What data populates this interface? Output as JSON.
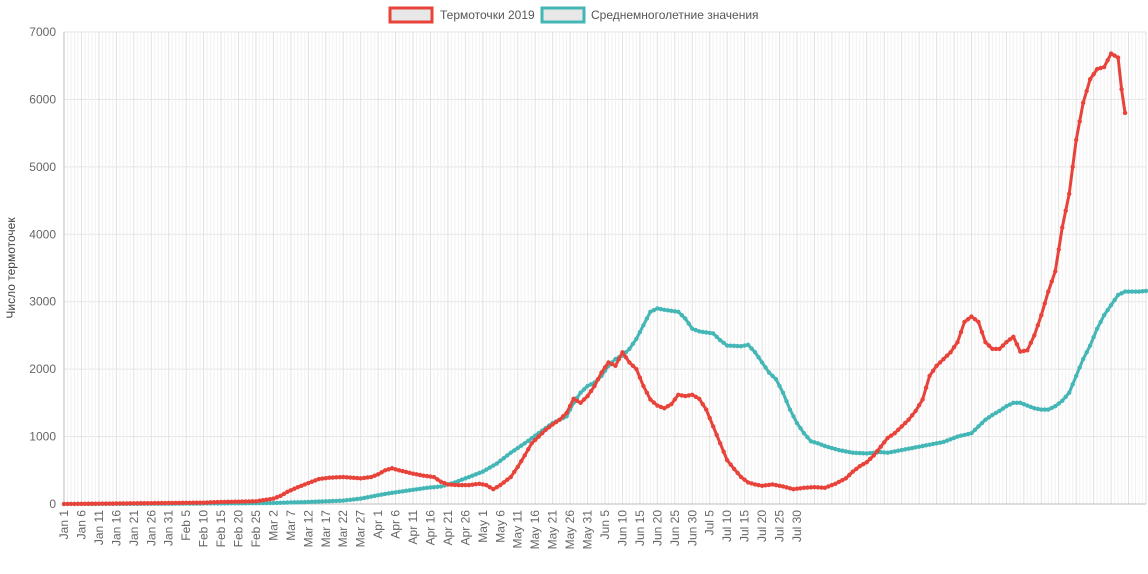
{
  "chart_data": {
    "type": "line",
    "title": "",
    "xlabel": "",
    "ylabel": "Число термоточек",
    "ylim": [
      0,
      7000
    ],
    "yticks": [
      "0",
      "1000",
      "2000",
      "3000",
      "4000",
      "5000",
      "6000",
      "7000"
    ],
    "x_start": "Jan 1",
    "x_tick_labels": [
      "Jan 1",
      "Jan 6",
      "Jan 11",
      "Jan 16",
      "Jan 21",
      "Jan 26",
      "Jan 31",
      "Feb 5",
      "Feb 10",
      "Feb 15",
      "Feb 20",
      "Feb 25",
      "Mar 2",
      "Mar 7",
      "Mar 12",
      "Mar 17",
      "Mar 22",
      "Mar 27",
      "Apr 1",
      "Apr 6",
      "Apr 11",
      "Apr 16",
      "Apr 21",
      "Apr 26",
      "May 1",
      "May 6",
      "May 11",
      "May 16",
      "May 21",
      "May 26",
      "May 31",
      "Jun 5",
      "Jun 10",
      "Jun 15",
      "Jun 20",
      "Jun 25",
      "Jun 30",
      "Jul 5",
      "Jul 10",
      "Jul 15",
      "Jul 20",
      "Jul 25",
      "Jul 30"
    ],
    "grid": true,
    "legend_position": "top",
    "series": [
      {
        "name": "Термоточки 2019",
        "color": "#e8433a",
        "points": [
          [
            0,
            0
          ],
          [
            10,
            5
          ],
          [
            20,
            10
          ],
          [
            30,
            15
          ],
          [
            40,
            20
          ],
          [
            45,
            30
          ],
          [
            50,
            35
          ],
          [
            55,
            40
          ],
          [
            60,
            80
          ],
          [
            62,
            120
          ],
          [
            64,
            180
          ],
          [
            67,
            250
          ],
          [
            70,
            310
          ],
          [
            73,
            370
          ],
          [
            76,
            390
          ],
          [
            80,
            400
          ],
          [
            85,
            380
          ],
          [
            88,
            400
          ],
          [
            90,
            440
          ],
          [
            92,
            500
          ],
          [
            94,
            530
          ],
          [
            96,
            500
          ],
          [
            100,
            450
          ],
          [
            103,
            420
          ],
          [
            106,
            400
          ],
          [
            108,
            330
          ],
          [
            110,
            290
          ],
          [
            113,
            280
          ],
          [
            116,
            280
          ],
          [
            119,
            300
          ],
          [
            121,
            280
          ],
          [
            123,
            220
          ],
          [
            125,
            280
          ],
          [
            128,
            400
          ],
          [
            130,
            550
          ],
          [
            132,
            720
          ],
          [
            134,
            900
          ],
          [
            136,
            1000
          ],
          [
            138,
            1100
          ],
          [
            140,
            1180
          ],
          [
            142,
            1250
          ],
          [
            144,
            1350
          ],
          [
            146,
            1560
          ],
          [
            148,
            1500
          ],
          [
            150,
            1600
          ],
          [
            152,
            1750
          ],
          [
            154,
            1950
          ],
          [
            156,
            2100
          ],
          [
            158,
            2050
          ],
          [
            160,
            2250
          ],
          [
            162,
            2100
          ],
          [
            164,
            2000
          ],
          [
            166,
            1750
          ],
          [
            168,
            1550
          ],
          [
            170,
            1460
          ],
          [
            172,
            1420
          ],
          [
            174,
            1480
          ],
          [
            176,
            1620
          ],
          [
            178,
            1600
          ],
          [
            180,
            1620
          ],
          [
            182,
            1560
          ],
          [
            184,
            1400
          ],
          [
            186,
            1150
          ],
          [
            188,
            900
          ],
          [
            190,
            650
          ],
          [
            192,
            520
          ],
          [
            194,
            400
          ],
          [
            196,
            320
          ],
          [
            198,
            290
          ],
          [
            200,
            270
          ],
          [
            203,
            290
          ],
          [
            206,
            260
          ],
          [
            209,
            220
          ],
          [
            212,
            240
          ],
          [
            215,
            250
          ],
          [
            218,
            240
          ],
          [
            221,
            300
          ],
          [
            224,
            380
          ],
          [
            226,
            480
          ],
          [
            228,
            560
          ],
          [
            230,
            620
          ],
          [
            232,
            720
          ],
          [
            234,
            850
          ],
          [
            236,
            980
          ],
          [
            238,
            1050
          ],
          [
            240,
            1150
          ],
          [
            242,
            1250
          ],
          [
            244,
            1380
          ],
          [
            246,
            1550
          ],
          [
            248,
            1900
          ],
          [
            250,
            2050
          ],
          [
            252,
            2150
          ],
          [
            254,
            2250
          ],
          [
            256,
            2400
          ],
          [
            258,
            2700
          ],
          [
            260,
            2780
          ],
          [
            262,
            2700
          ],
          [
            264,
            2400
          ],
          [
            266,
            2300
          ],
          [
            268,
            2300
          ],
          [
            270,
            2400
          ],
          [
            272,
            2480
          ],
          [
            274,
            2260
          ],
          [
            276,
            2280
          ],
          [
            278,
            2500
          ],
          [
            280,
            2800
          ],
          [
            282,
            3150
          ],
          [
            284,
            3450
          ],
          [
            286,
            4100
          ],
          [
            288,
            4600
          ],
          [
            290,
            5400
          ],
          [
            292,
            5950
          ],
          [
            294,
            6300
          ],
          [
            296,
            6450
          ],
          [
            298,
            6480
          ],
          [
            300,
            6680
          ],
          [
            302,
            6620
          ],
          [
            303,
            6150
          ],
          [
            304,
            5800
          ]
        ]
      },
      {
        "name": "Среднемноголетние значения",
        "color": "#44b6b6",
        "points": [
          [
            0,
            0
          ],
          [
            30,
            5
          ],
          [
            50,
            10
          ],
          [
            60,
            15
          ],
          [
            70,
            30
          ],
          [
            80,
            50
          ],
          [
            85,
            80
          ],
          [
            88,
            110
          ],
          [
            92,
            150
          ],
          [
            96,
            180
          ],
          [
            100,
            210
          ],
          [
            104,
            240
          ],
          [
            108,
            260
          ],
          [
            112,
            320
          ],
          [
            116,
            400
          ],
          [
            120,
            480
          ],
          [
            124,
            600
          ],
          [
            128,
            760
          ],
          [
            132,
            900
          ],
          [
            136,
            1050
          ],
          [
            140,
            1200
          ],
          [
            144,
            1300
          ],
          [
            146,
            1500
          ],
          [
            148,
            1650
          ],
          [
            150,
            1750
          ],
          [
            152,
            1800
          ],
          [
            154,
            1900
          ],
          [
            156,
            2050
          ],
          [
            158,
            2150
          ],
          [
            160,
            2200
          ],
          [
            162,
            2300
          ],
          [
            164,
            2450
          ],
          [
            166,
            2650
          ],
          [
            168,
            2850
          ],
          [
            170,
            2900
          ],
          [
            172,
            2880
          ],
          [
            176,
            2850
          ],
          [
            178,
            2750
          ],
          [
            180,
            2600
          ],
          [
            182,
            2560
          ],
          [
            186,
            2530
          ],
          [
            188,
            2430
          ],
          [
            190,
            2350
          ],
          [
            194,
            2340
          ],
          [
            196,
            2360
          ],
          [
            198,
            2250
          ],
          [
            200,
            2100
          ],
          [
            202,
            1950
          ],
          [
            204,
            1850
          ],
          [
            206,
            1650
          ],
          [
            208,
            1400
          ],
          [
            210,
            1200
          ],
          [
            212,
            1050
          ],
          [
            214,
            930
          ],
          [
            216,
            900
          ],
          [
            218,
            860
          ],
          [
            222,
            800
          ],
          [
            226,
            760
          ],
          [
            230,
            750
          ],
          [
            234,
            770
          ],
          [
            236,
            760
          ],
          [
            240,
            800
          ],
          [
            244,
            840
          ],
          [
            248,
            880
          ],
          [
            252,
            920
          ],
          [
            256,
            1000
          ],
          [
            260,
            1050
          ],
          [
            262,
            1150
          ],
          [
            264,
            1250
          ],
          [
            266,
            1320
          ],
          [
            268,
            1380
          ],
          [
            270,
            1450
          ],
          [
            272,
            1500
          ],
          [
            274,
            1500
          ],
          [
            276,
            1460
          ],
          [
            278,
            1420
          ],
          [
            280,
            1400
          ],
          [
            282,
            1400
          ],
          [
            284,
            1450
          ],
          [
            286,
            1530
          ],
          [
            288,
            1650
          ],
          [
            290,
            1900
          ],
          [
            292,
            2150
          ],
          [
            294,
            2350
          ],
          [
            296,
            2600
          ],
          [
            298,
            2800
          ],
          [
            300,
            2950
          ],
          [
            302,
            3100
          ],
          [
            304,
            3150
          ],
          [
            306,
            3150
          ],
          [
            308,
            3150
          ],
          [
            310,
            3160
          ]
        ]
      }
    ]
  }
}
